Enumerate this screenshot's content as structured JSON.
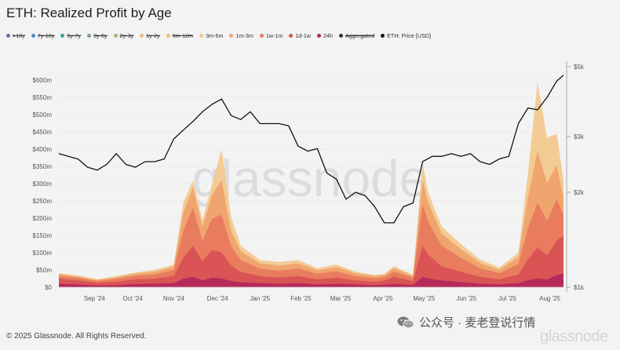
{
  "title": "ETH: Realized Profit by Age",
  "footer": "© 2025 Glassnode. All Rights Reserved.",
  "watermark": "glassnode",
  "wechat_label": "公众号 · 麦老登说行情",
  "legend": [
    {
      "label": ">10y",
      "color": "#6b6bb6",
      "active": false
    },
    {
      "label": "7y-10y",
      "color": "#4f8bc7",
      "active": false
    },
    {
      "label": "5y-7y",
      "color": "#3aa59a",
      "active": false
    },
    {
      "label": "3y-5y",
      "color": "#7fa37f",
      "active": false
    },
    {
      "label": "2y-3y",
      "color": "#b9b06a",
      "active": false
    },
    {
      "label": "1y-2y",
      "color": "#e2c07c",
      "active": false
    },
    {
      "label": "6m-12m",
      "color": "#f2b66c",
      "active": false
    },
    {
      "label": "3m-6m",
      "color": "#f3c98c",
      "active": true
    },
    {
      "label": "1m-3m",
      "color": "#f0a26b",
      "active": true
    },
    {
      "label": "1w-1m",
      "color": "#e8785c",
      "active": true
    },
    {
      "label": "1d-1w",
      "color": "#d84f55",
      "active": true
    },
    {
      "label": "24h",
      "color": "#b3265c",
      "active": true
    },
    {
      "label": "Aggregated",
      "color": "#333333",
      "active": false
    },
    {
      "label": "ETH: Price [USD]",
      "color": "#111111",
      "active": true
    }
  ],
  "chart_data": {
    "type": "area",
    "title": "ETH: Realized Profit by Age",
    "x_ticks": [
      "Sep '24",
      "Oct '24",
      "Nov '24",
      "Dec '24",
      "Jan '25",
      "Feb '25",
      "Mar '25",
      "Apr '25",
      "May '25",
      "Jun '25",
      "Jul '25",
      "Aug '25"
    ],
    "y_left_ticks": [
      "$0",
      "$50m",
      "$100m",
      "$150m",
      "$200m",
      "$250m",
      "$300m",
      "$350m",
      "$400m",
      "$450m",
      "$500m",
      "$550m",
      "$600m"
    ],
    "y_left_range": [
      0,
      600
    ],
    "y_left_unit": "USD millions",
    "y_right_ticks": [
      "$1k",
      "$2k",
      "$3k",
      "$5k"
    ],
    "y_right_values": [
      1000,
      2000,
      3000,
      5000
    ],
    "y_right_scale": "log",
    "dates": [
      "2024-08-15",
      "2024-08-29",
      "2024-09-12",
      "2024-09-26",
      "2024-10-10",
      "2024-10-24",
      "2024-11-07",
      "2024-11-14",
      "2024-11-21",
      "2024-11-28",
      "2024-12-05",
      "2024-12-12",
      "2024-12-19",
      "2024-12-26",
      "2025-01-09",
      "2025-01-23",
      "2025-02-06",
      "2025-02-20",
      "2025-03-06",
      "2025-03-20",
      "2025-04-03",
      "2025-04-10",
      "2025-04-17",
      "2025-05-01",
      "2025-05-08",
      "2025-05-12",
      "2025-05-22",
      "2025-06-05",
      "2025-06-19",
      "2025-07-03",
      "2025-07-17",
      "2025-07-24",
      "2025-07-31",
      "2025-08-07",
      "2025-08-14",
      "2025-08-19"
    ],
    "series": [
      {
        "name": "24h",
        "color": "#b3265c",
        "values": [
          10,
          8,
          5,
          6,
          9,
          10,
          12,
          25,
          30,
          20,
          28,
          25,
          18,
          14,
          12,
          10,
          12,
          8,
          10,
          8,
          6,
          7,
          10,
          6,
          30,
          25,
          20,
          15,
          10,
          8,
          12,
          20,
          25,
          22,
          35,
          40
        ]
      },
      {
        "name": "1d-1w",
        "color": "#d84f55",
        "values": [
          15,
          12,
          8,
          10,
          14,
          15,
          20,
          60,
          90,
          55,
          80,
          75,
          45,
          30,
          20,
          18,
          20,
          15,
          18,
          12,
          10,
          12,
          20,
          12,
          90,
          70,
          40,
          30,
          20,
          15,
          25,
          60,
          90,
          70,
          100,
          110
        ]
      },
      {
        "name": "1w-1m",
        "color": "#e8785c",
        "values": [
          8,
          7,
          5,
          8,
          10,
          12,
          18,
          80,
          110,
          60,
          90,
          110,
          55,
          35,
          22,
          20,
          22,
          16,
          18,
          12,
          10,
          10,
          15,
          10,
          120,
          95,
          60,
          40,
          25,
          18,
          30,
          90,
          130,
          100,
          120,
          60
        ]
      },
      {
        "name": "1m-3m",
        "color": "#f0a26b",
        "values": [
          5,
          4,
          3,
          5,
          6,
          8,
          10,
          50,
          60,
          40,
          70,
          100,
          45,
          25,
          15,
          15,
          15,
          10,
          12,
          8,
          6,
          6,
          10,
          5,
          70,
          55,
          35,
          25,
          15,
          10,
          20,
          90,
          150,
          110,
          100,
          50
        ]
      },
      {
        "name": "3m-6m",
        "color": "#f3c98c",
        "values": [
          3,
          3,
          2,
          3,
          4,
          5,
          6,
          30,
          20,
          20,
          30,
          90,
          40,
          15,
          10,
          10,
          10,
          6,
          8,
          5,
          4,
          4,
          6,
          3,
          50,
          30,
          20,
          15,
          10,
          6,
          12,
          70,
          200,
          130,
          90,
          50
        ]
      }
    ],
    "price_series": {
      "name": "ETH: Price [USD]",
      "dates": [
        "2024-08-15",
        "2024-08-22",
        "2024-08-29",
        "2024-09-05",
        "2024-09-12",
        "2024-09-19",
        "2024-09-26",
        "2024-10-03",
        "2024-10-10",
        "2024-10-17",
        "2024-10-24",
        "2024-10-31",
        "2024-11-07",
        "2024-11-14",
        "2024-11-21",
        "2024-11-28",
        "2024-12-05",
        "2024-12-12",
        "2024-12-19",
        "2024-12-26",
        "2025-01-02",
        "2025-01-09",
        "2025-01-16",
        "2025-01-23",
        "2025-01-30",
        "2025-02-06",
        "2025-02-13",
        "2025-02-20",
        "2025-02-27",
        "2025-03-06",
        "2025-03-13",
        "2025-03-20",
        "2025-03-27",
        "2025-04-03",
        "2025-04-10",
        "2025-04-17",
        "2025-04-24",
        "2025-05-01",
        "2025-05-08",
        "2025-05-15",
        "2025-05-22",
        "2025-05-29",
        "2025-06-05",
        "2025-06-12",
        "2025-06-19",
        "2025-06-26",
        "2025-07-03",
        "2025-07-10",
        "2025-07-17",
        "2025-07-24",
        "2025-07-31",
        "2025-08-07",
        "2025-08-14",
        "2025-08-19"
      ],
      "values": [
        2650,
        2600,
        2550,
        2400,
        2350,
        2450,
        2650,
        2450,
        2400,
        2500,
        2500,
        2550,
        2950,
        3150,
        3350,
        3600,
        3800,
        3950,
        3500,
        3400,
        3600,
        3300,
        3300,
        3300,
        3250,
        2800,
        2700,
        2750,
        2300,
        2200,
        1900,
        2000,
        1950,
        1800,
        1600,
        1600,
        1800,
        1850,
        2500,
        2600,
        2600,
        2650,
        2600,
        2650,
        2500,
        2450,
        2550,
        2600,
        3300,
        3700,
        3650,
        4000,
        4500,
        4700
      ]
    }
  }
}
